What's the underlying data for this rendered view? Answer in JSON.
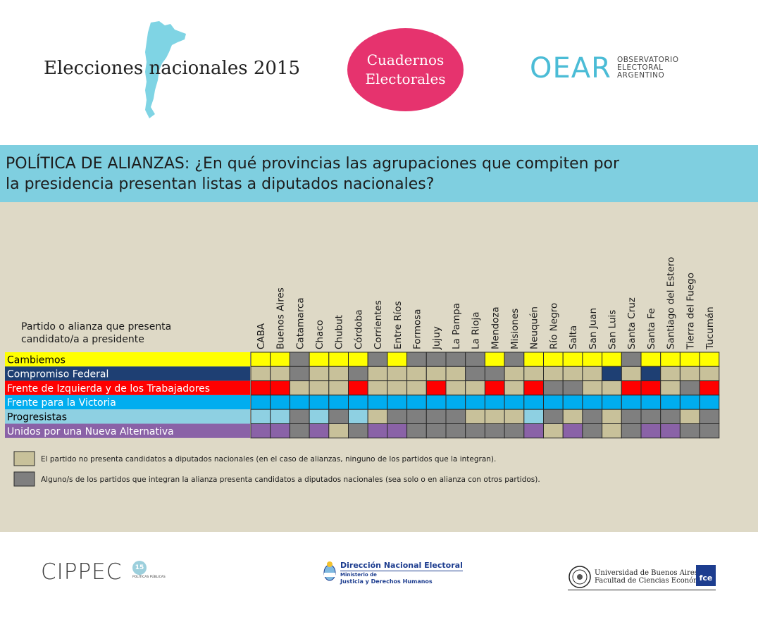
{
  "header": {
    "title": "Elecciones nacionales 2015",
    "badge_line1": "Cuadernos",
    "badge_line2": "Electorales",
    "oear_logo": "OEAR",
    "oear_line1": "OBSERVATORIO",
    "oear_line2": "ELECTORAL",
    "oear_line3": "ARGENTINO"
  },
  "banner": {
    "line1": "POLÍTICA DE ALIANZAS: ¿En qué provincias las agrupaciones que compiten por",
    "line2": "la presidencia presentan listas a diputados nacionales?"
  },
  "table": {
    "party_header_line1": "Partido o alianza que presenta",
    "party_header_line2": "candidato/a a presidente"
  },
  "colors": {
    "tan": "#c8c19a",
    "gray": "#7f7f7f",
    "cambiemos": "#ffff00",
    "compromiso": "#1e3f73",
    "fit": "#ff0000",
    "fpv": "#00adef",
    "progresistas": "#8ed0e2",
    "una": "#8a62a7"
  },
  "chart_data": {
    "type": "table",
    "title": "POLÍTICA DE ALIANZAS: ¿En qué provincias las agrupaciones que compiten por la presidencia presentan listas a diputados nacionales?",
    "provinces": [
      "CABA",
      "Buenos Aires",
      "Catamarca",
      "Chaco",
      "Chubut",
      "Córdoba",
      "Corrientes",
      "Entre Ríos",
      "Formosa",
      "Jujuy",
      "La Pampa",
      "La Rioja",
      "Mendoza",
      "Misiones",
      "Neuquén",
      "Río Negro",
      "Salta",
      "San Juan",
      "San Luis",
      "Santa Cruz",
      "Santa Fe",
      "Santiago del Estero",
      "Tierra del Fuego",
      "Tucumán"
    ],
    "legend_codes": {
      "P": "color propio del partido",
      "T": "no presenta",
      "G": "alguno de los partidos presenta"
    },
    "parties": [
      {
        "name": "Cambiemos",
        "color": "#ffff00",
        "text_color": "#000000",
        "cells": [
          "P",
          "P",
          "G",
          "P",
          "P",
          "P",
          "G",
          "P",
          "G",
          "G",
          "G",
          "G",
          "P",
          "G",
          "P",
          "P",
          "P",
          "P",
          "P",
          "G",
          "P",
          "P",
          "P",
          "P"
        ]
      },
      {
        "name": "Compromiso Federal",
        "color": "#1e3f73",
        "text_color": "#ffffff",
        "cells": [
          "T",
          "T",
          "G",
          "T",
          "T",
          "G",
          "T",
          "T",
          "T",
          "T",
          "T",
          "G",
          "G",
          "T",
          "T",
          "T",
          "T",
          "T",
          "P",
          "T",
          "P",
          "T",
          "T",
          "T"
        ]
      },
      {
        "name": "Frente de Izquierda y de los Trabajadores",
        "color": "#ff0000",
        "text_color": "#ffffff",
        "cells": [
          "P",
          "P",
          "T",
          "T",
          "T",
          "P",
          "T",
          "T",
          "T",
          "P",
          "T",
          "T",
          "P",
          "T",
          "P",
          "G",
          "G",
          "T",
          "T",
          "P",
          "P",
          "T",
          "G",
          "P"
        ]
      },
      {
        "name": "Frente para la Victoria",
        "color": "#00adef",
        "text_color": "#ffffff",
        "cells": [
          "P",
          "P",
          "P",
          "P",
          "P",
          "P",
          "P",
          "P",
          "P",
          "P",
          "P",
          "P",
          "P",
          "P",
          "P",
          "P",
          "P",
          "P",
          "P",
          "P",
          "P",
          "P",
          "P",
          "P"
        ]
      },
      {
        "name": "Progresistas",
        "color": "#8ed0e2",
        "text_color": "#000000",
        "cells": [
          "P",
          "P",
          "G",
          "P",
          "G",
          "P",
          "T",
          "G",
          "G",
          "G",
          "G",
          "T",
          "T",
          "T",
          "P",
          "G",
          "T",
          "G",
          "T",
          "G",
          "G",
          "G",
          "T",
          "G"
        ]
      },
      {
        "name": "Unidos por una Nueva Alternativa",
        "color": "#8a62a7",
        "text_color": "#ffffff",
        "cells": [
          "P",
          "P",
          "G",
          "P",
          "T",
          "G",
          "P",
          "P",
          "G",
          "G",
          "G",
          "G",
          "G",
          "G",
          "P",
          "T",
          "P",
          "G",
          "T",
          "G",
          "P",
          "P",
          "G",
          "G"
        ]
      }
    ],
    "legend": [
      {
        "code": "T",
        "color": "#c8c19a",
        "label": "El partido no presenta candidatos a diputados nacionales (en el caso de alianzas, ninguno de los partidos que la integran)."
      },
      {
        "code": "G",
        "color": "#7f7f7f",
        "label": "Alguno/s de los partidos que integran la alianza presenta candidatos a diputados nacionales (sea solo o en alianza con otros partidos)."
      }
    ]
  },
  "footer": {
    "cippec": "CIPPEC",
    "cippec_badge": "15",
    "cippec_small": "POLÍTICAS PÚBLICAS",
    "dne_title": "Dirección Nacional Electoral",
    "dne_sub1": "Ministerio de",
    "dne_sub2": "Justicia y Derechos Humanos",
    "uba_line1": "Universidad de Buenos Aires",
    "uba_line2": "Facultad de Ciencias Económicas",
    "fce": "fce"
  }
}
